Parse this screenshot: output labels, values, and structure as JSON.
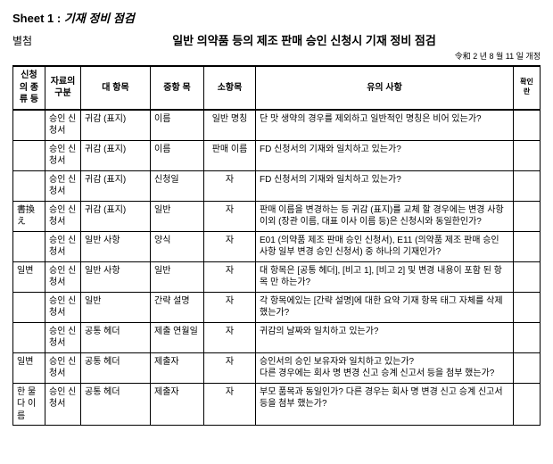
{
  "sheet": {
    "label": "Sheet 1 :",
    "title": "기재 정비 점검"
  },
  "header": {
    "left": "별첨",
    "title": "일반 의약품 등의 제조 판매 승인 신청시 기재 정비 점검"
  },
  "revision": "令和 2 년 8 월 11 일 개정",
  "columns": [
    "신청의 종류 등",
    "자료의 구분",
    "대 항목",
    "중항 목",
    "소항목",
    "유의 사항",
    "확인 란"
  ],
  "rows": [
    {
      "a": "",
      "b": "승인 신청서",
      "c": "귀감 (표지)",
      "d": "이름",
      "e": "일반 명칭",
      "f": "단 맛 생약의 경우를 제외하고 일반적인 명칭은 비어 있는가?",
      "g": ""
    },
    {
      "a": "",
      "b": "승인 신청서",
      "c": "귀감 (표지)",
      "d": "이름",
      "e": "판매 이름",
      "f": "FD 신청서의 기재와 일치하고 있는가?",
      "g": ""
    },
    {
      "a": "",
      "b": "승인 신청서",
      "c": "귀감 (표지)",
      "d": "신청일",
      "e": "자",
      "f": "FD 신청서의 기재와 일치하고 있는가?",
      "g": ""
    },
    {
      "a": "書換え",
      "b": "승인 신청서",
      "c": "귀감 (표지)",
      "d": "일반",
      "e": "자",
      "f": "판매 이름을 변경하는 등 귀감 (표지)를 교체 할 경우에는 변경 사항 이외 (장관 이름, 대표 이사 이름 등)은 신청시와 동일한인가?",
      "g": ""
    },
    {
      "a": "",
      "b": "승인 신청서",
      "c": "일반 사항",
      "d": "양식",
      "e": "자",
      "f": "E01 (의약품 제조 판매 승인 신청서), E11 (의약품 제조 판매 승인 사항 일부 변경 승인 신청서) 중 하나의 기재인가?",
      "g": ""
    },
    {
      "a": "일변",
      "b": "승인 신청서",
      "c": "일반 사항",
      "d": "일반",
      "e": "자",
      "f": "대 항목은 [공통 헤더], [비고 1], [비고 2] 및 변경 내용이 포함 된 항목 만 하는가?",
      "g": ""
    },
    {
      "a": "",
      "b": "승인 신청서",
      "c": "일반",
      "d": "간략 설명",
      "e": "자",
      "f": "각 항목에있는 [간략 설명]에 대한 요약 기재 항목 태그 자체를 삭제 했는가?",
      "g": ""
    },
    {
      "a": "",
      "b": "승인 신청서",
      "c": "공통 헤더",
      "d": "제출 연월일",
      "e": "자",
      "f": "귀감의 날짜와 일치하고 있는가?",
      "g": ""
    },
    {
      "a": "일변",
      "b": "승인 신청서",
      "c": "공통 헤더",
      "d": "제출자",
      "e": "자",
      "f": "승인서의 승인 보유자와 일치하고 있는가?\n다른 경우에는 회사 명 변경 신고 승계 신고서 등을 첨부 했는가?",
      "g": ""
    },
    {
      "a": "한 물 다 이름",
      "b": "승인 신청서",
      "c": "공통 헤더",
      "d": "제출자",
      "e": "자",
      "f": "부모 품목과 동일인가? 다른 경우는 회사 명 변경 신고 승계 신고서 등을 첨부 했는가?",
      "g": ""
    }
  ]
}
